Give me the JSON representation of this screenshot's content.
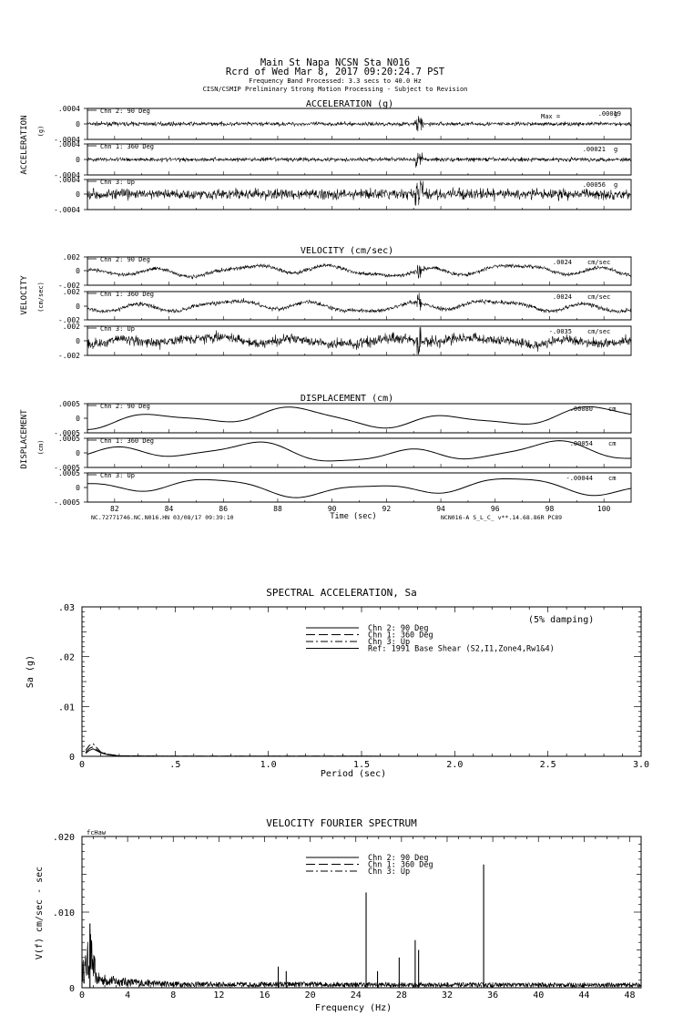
{
  "header": {
    "line1": "Main St Napa     NCSN Sta N016",
    "line2": "Rcrd of Wed Mar  8, 2017 09:20:24.7 PST",
    "line3": "Frequency Band Processed: 3.3 secs to 40.0 Hz",
    "line4": "CISN/CSMIP Preliminary Strong Motion Processing - Subject to Revision"
  },
  "chart_data": [
    {
      "type": "line",
      "title": "ACCELERATION (g)",
      "side_label": "ACCELERATION",
      "unit_label": "(g)",
      "max_label": "Max =",
      "ylim": [
        -0.0004,
        0.0004
      ],
      "ytick_labels": [
        ".0004",
        "0",
        "-.0004"
      ],
      "xlim": [
        81,
        101
      ],
      "series": [
        {
          "name": "Chn 2: 90 Deg",
          "peak": ".00019",
          "unit": "g"
        },
        {
          "name": "Chn 1: 360 Deg",
          "peak": ".00021",
          "unit": "g"
        },
        {
          "name": "Chn 3: Up",
          "peak": ".00056",
          "unit": "g"
        }
      ]
    },
    {
      "type": "line",
      "title": "VELOCITY (cm/sec)",
      "side_label": "VELOCITY",
      "unit_label": "(cm/sec)",
      "ylim": [
        -0.002,
        0.002
      ],
      "ytick_labels": [
        ".002",
        "0",
        "-.002"
      ],
      "xlim": [
        81,
        101
      ],
      "series": [
        {
          "name": "Chn 2: 90 Deg",
          "peak": ".0024",
          "unit": "cm/sec"
        },
        {
          "name": "Chn 1: 360 Deg",
          "peak": ".0024",
          "unit": "cm/sec"
        },
        {
          "name": "Chn 3: Up",
          "peak": "-.0035",
          "unit": "cm/sec"
        }
      ]
    },
    {
      "type": "line",
      "title": "DISPLACEMENT (cm)",
      "side_label": "DISPLACEMENT",
      "unit_label": "(cm)",
      "ylim": [
        -0.0005,
        0.0005
      ],
      "ytick_labels": [
        ".0005",
        "0",
        "-.0005"
      ],
      "xlim": [
        81,
        101
      ],
      "xlabel": "Time (sec)",
      "xticks": [
        82,
        84,
        86,
        88,
        90,
        92,
        94,
        96,
        98,
        100
      ],
      "footer_left": "NC.72771746.NC.N016.HN 03/08/17 09:39:10",
      "footer_right": "NCN016-A  S_L_C_  v**.14.68.86R PC89",
      "series": [
        {
          "name": "Chn 2: 90 Deg",
          "peak": ".00080",
          "unit": "cm"
        },
        {
          "name": "Chn 1: 360 Deg",
          "peak": ".00054",
          "unit": "cm"
        },
        {
          "name": "Chn 3: Up",
          "peak": "-.00044",
          "unit": "cm"
        }
      ]
    },
    {
      "type": "line",
      "title": "SPECTRAL ACCELERATION, Sa",
      "ylabel": "Sa (g)",
      "xlabel": "Period (sec)",
      "annotation": "(5% damping)",
      "xlim": [
        0,
        3.0
      ],
      "ylim": [
        0,
        0.03
      ],
      "xticks": [
        0,
        0.5,
        1.0,
        1.5,
        2.0,
        2.5,
        3.0
      ],
      "xtick_labels": [
        "0",
        ".5",
        "1.0",
        "1.5",
        "2.0",
        "2.5",
        "3.0"
      ],
      "ytick_labels": [
        "0",
        ".01",
        ".02",
        ".03"
      ],
      "legend": [
        "Chn 2: 90 Deg",
        "Chn 1: 360 Deg",
        "Chn 3: Up",
        "Ref: 1991 Base Shear (S2,I1,Zone4,Rw1&4)"
      ],
      "series": [
        {
          "name": "Chn 2: 90 Deg",
          "x": [
            0.02,
            0.04,
            0.06,
            0.08,
            0.1,
            0.14,
            0.2,
            0.3,
            0.5,
            3.0
          ],
          "y": [
            0.0006,
            0.0012,
            0.0015,
            0.0011,
            0.0007,
            0.0003,
            0.0001,
            5e-05,
            2e-05,
            0.0
          ]
        },
        {
          "name": "Chn 1: 360 Deg",
          "x": [
            0.02,
            0.04,
            0.06,
            0.08,
            0.1,
            0.14,
            0.2,
            0.3,
            0.5,
            3.0
          ],
          "y": [
            0.0008,
            0.0016,
            0.0019,
            0.0013,
            0.0008,
            0.0004,
            0.0001,
            5e-05,
            2e-05,
            0.0
          ]
        },
        {
          "name": "Chn 3: Up",
          "x": [
            0.02,
            0.04,
            0.06,
            0.08,
            0.1,
            0.14,
            0.2,
            0.3,
            0.5,
            3.0
          ],
          "y": [
            0.0012,
            0.0022,
            0.0025,
            0.0017,
            0.0009,
            0.0004,
            0.0001,
            5e-05,
            2e-05,
            0.0
          ]
        }
      ]
    },
    {
      "type": "line",
      "title": "VELOCITY FOURIER SPECTRUM",
      "ylabel": "V(f)  cm/sec - sec",
      "xlabel": "Frequency (Hz)",
      "corner_label": "fcHaw",
      "xlim": [
        0,
        49
      ],
      "ylim": [
        0,
        0.02
      ],
      "xticks": [
        0,
        4,
        8,
        12,
        16,
        20,
        24,
        28,
        32,
        36,
        40,
        44,
        48
      ],
      "ytick_labels": [
        "0",
        ".010",
        ".020"
      ],
      "legend": [
        "Chn 2: 90 Deg",
        "Chn 1: 360 Deg",
        "Chn 3: Up"
      ],
      "peaks": [
        {
          "f": 0.7,
          "v": 0.0085
        },
        {
          "f": 17.2,
          "v": 0.0028
        },
        {
          "f": 17.9,
          "v": 0.0022
        },
        {
          "f": 24.9,
          "v": 0.0126
        },
        {
          "f": 25.9,
          "v": 0.0022
        },
        {
          "f": 27.8,
          "v": 0.004
        },
        {
          "f": 29.2,
          "v": 0.0063
        },
        {
          "f": 29.5,
          "v": 0.005
        },
        {
          "f": 35.2,
          "v": 0.0163
        }
      ]
    }
  ]
}
